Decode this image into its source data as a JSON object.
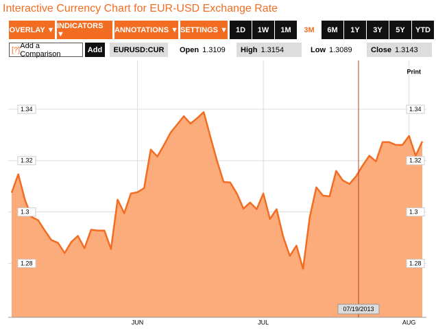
{
  "header": {
    "title": "Interactive Currency Chart for EUR-USD Exchange Rate"
  },
  "toolbar": {
    "menus": [
      "OVERLAY ▼",
      "INDICATORS ▼",
      "ANNOTATIONS ▼",
      "SETTINGS ▼"
    ],
    "ranges": [
      "1D",
      "1W",
      "1M",
      "3M",
      "6M",
      "1Y",
      "3Y",
      "5Y",
      "YTD"
    ],
    "selected_range": "3M"
  },
  "comparison": {
    "help": "[?]",
    "placeholder": "Add a Comparison",
    "button": "Add"
  },
  "quote": {
    "symbol": "EURUSD:CUR",
    "fields": [
      {
        "label": "Open",
        "value": 1.3109
      },
      {
        "label": "High",
        "value": 1.3154
      },
      {
        "label": "Low",
        "value": 1.3089
      },
      {
        "label": "Close",
        "value": 1.3143
      }
    ]
  },
  "chart_data": {
    "type": "area",
    "print": "Print",
    "crosshair_label": "07/19/2013",
    "categories": [
      null,
      null,
      null,
      null,
      null,
      null,
      null,
      null,
      null,
      null,
      null,
      null,
      null,
      null,
      null,
      null,
      null,
      null,
      null,
      "JUN",
      null,
      null,
      null,
      null,
      null,
      null,
      null,
      null,
      null,
      null,
      null,
      null,
      null,
      null,
      null,
      null,
      null,
      null,
      "JUL",
      null,
      null,
      null,
      null,
      null,
      null,
      null,
      null,
      null,
      null,
      null,
      null,
      null,
      null,
      null,
      null,
      null,
      null,
      null,
      null,
      null,
      "AUG",
      null,
      null
    ],
    "values": [
      1.3075,
      1.3147,
      1.3048,
      1.2981,
      1.2968,
      1.2928,
      1.2891,
      1.288,
      1.284,
      1.2883,
      1.2907,
      1.2859,
      1.2931,
      1.2928,
      1.2928,
      1.2856,
      1.3048,
      1.2995,
      1.3072,
      1.3077,
      1.3093,
      1.3243,
      1.3216,
      1.3261,
      1.3309,
      1.3341,
      1.3373,
      1.3344,
      1.3365,
      1.3389,
      1.3293,
      1.32,
      1.3117,
      1.3115,
      1.3072,
      1.3013,
      1.3037,
      1.3011,
      1.3072,
      1.2973,
      1.3011,
      1.2904,
      1.2829,
      1.2869,
      1.2779,
      1.2979,
      1.3096,
      1.3064,
      1.3061,
      1.316,
      1.3123,
      1.3109,
      1.3139,
      1.3181,
      1.3219,
      1.3197,
      1.3272,
      1.3272,
      1.3261,
      1.3261,
      1.3296,
      1.3219,
      1.3275
    ],
    "color": "#f26d21",
    "fill_color": "#fcab7a",
    "ylim": [
      1.259,
      1.359
    ],
    "yticks": [
      1.28,
      1.3,
      1.32,
      1.34
    ],
    "grid": true
  }
}
